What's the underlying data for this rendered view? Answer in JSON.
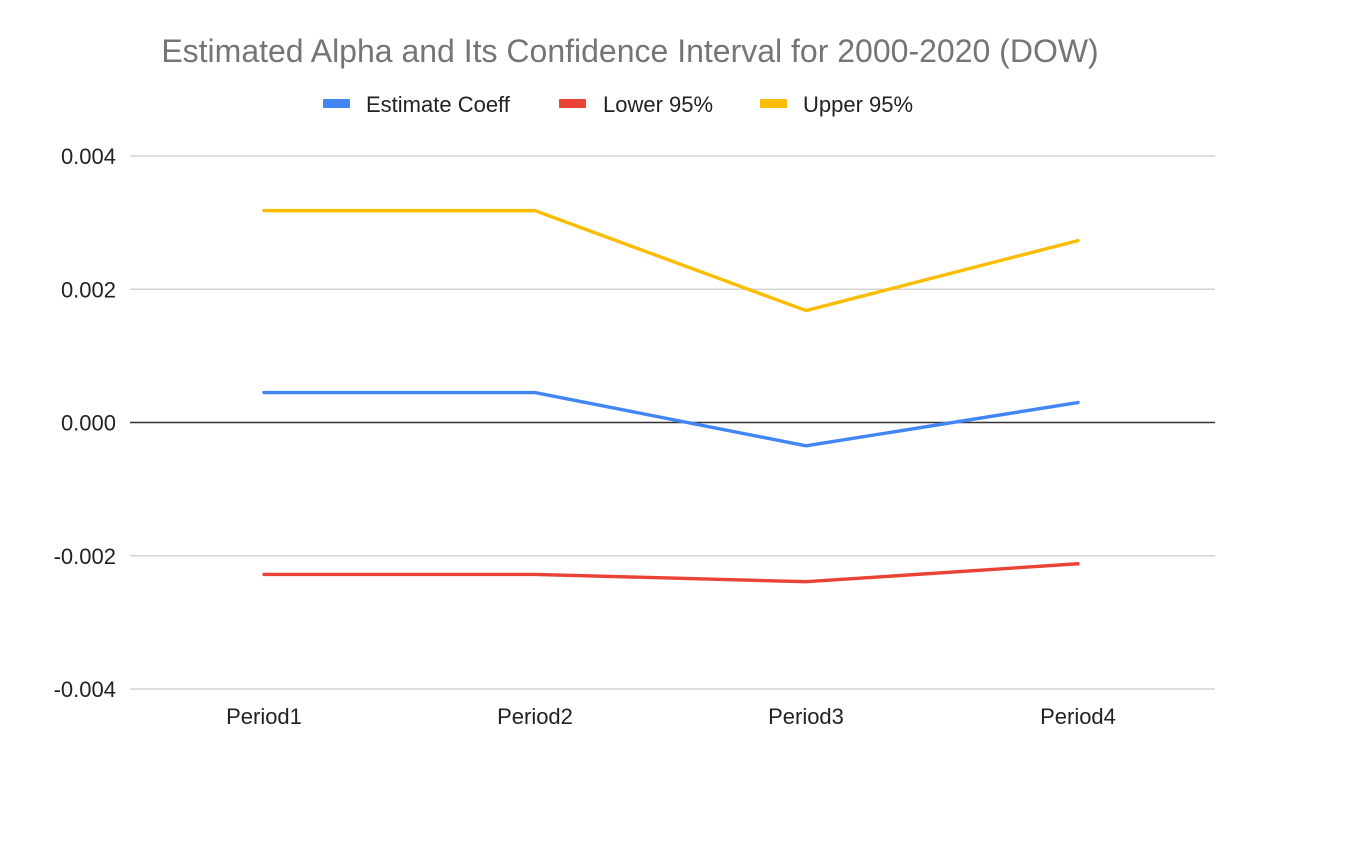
{
  "chart_data": {
    "type": "line",
    "title": "Estimated Alpha and Its Confidence Interval for 2000-2020 (DOW)",
    "xlabel": "",
    "ylabel": "",
    "categories": [
      "Period1",
      "Period2",
      "Period3",
      "Period4"
    ],
    "series": [
      {
        "name": "Estimate Coeff",
        "color": "#4285f4",
        "values": [
          0.00045,
          0.00045,
          -0.00035,
          0.0003
        ]
      },
      {
        "name": "Lower 95%",
        "color": "#ea4335",
        "values": [
          -0.00228,
          -0.00228,
          -0.00239,
          -0.00212
        ]
      },
      {
        "name": "Upper 95%",
        "color": "#fbbc04",
        "values": [
          0.00318,
          0.00318,
          0.00168,
          0.00273
        ]
      }
    ],
    "ylim": [
      -0.004,
      0.004
    ],
    "yticks": [
      "0.004",
      "0.002",
      "0.000",
      "-0.002",
      "-0.004"
    ],
    "ytick_values": [
      0.004,
      0.002,
      0,
      -0.002,
      -0.004
    ],
    "grid": true,
    "legend_position": "top"
  }
}
